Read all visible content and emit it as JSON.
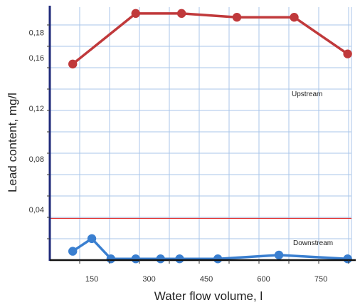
{
  "chart_data": {
    "type": "line",
    "xlabel": "Water flow volume, l",
    "ylabel": "Lead content, mg/l",
    "xlim": [
      40,
      830
    ],
    "ylim": [
      0,
      0.2
    ],
    "x_ticks": [
      {
        "value": 150,
        "label": "150"
      },
      {
        "value": 300,
        "label": "300"
      },
      {
        "value": 450,
        "label": "450"
      },
      {
        "value": 600,
        "label": "600"
      },
      {
        "value": 750,
        "label": "750"
      }
    ],
    "y_ticks": [
      {
        "value": 0.04,
        "label": "0,04"
      },
      {
        "value": 0.08,
        "label": "0,08"
      },
      {
        "value": 0.12,
        "label": "0,12"
      },
      {
        "value": 0.16,
        "label": "0,16"
      },
      {
        "value": 0.18,
        "label": "0,18"
      }
    ],
    "grid": true,
    "series": [
      {
        "name": "Upstream",
        "color": "#c0393b",
        "x": [
          100,
          265,
          385,
          530,
          680,
          820
        ],
        "y": [
          0.155,
          0.195,
          0.195,
          0.192,
          0.192,
          0.163
        ]
      },
      {
        "name": "Downstream",
        "color": "#3a7fd0",
        "x": [
          100,
          150,
          200,
          265,
          330,
          380,
          480,
          640,
          820
        ],
        "y": [
          0.007,
          0.017,
          0.001,
          0.001,
          0.001,
          0.001,
          0.001,
          0.004,
          0.001
        ]
      }
    ],
    "reference_line": {
      "y": 0.033,
      "color": "#e03030"
    }
  }
}
